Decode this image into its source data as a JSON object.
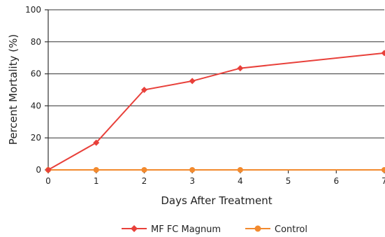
{
  "chart_data": {
    "type": "line",
    "xlabel": "Days After Treatment",
    "ylabel": "Percent Mortality (%)",
    "xlim": [
      0,
      7
    ],
    "ylim": [
      0,
      100
    ],
    "x_ticks": [
      0,
      1,
      2,
      3,
      4,
      5,
      6,
      7
    ],
    "y_ticks": [
      0,
      20,
      40,
      60,
      80,
      100
    ],
    "x_tick_labels": [
      "0",
      "1",
      "2",
      "3",
      "4",
      "5",
      "6",
      "7"
    ],
    "y_tick_labels": [
      "0",
      "20",
      "40",
      "60",
      "80",
      "100"
    ],
    "grid": "horizontal",
    "legend_position": "bottom",
    "series": [
      {
        "name": "MF FC Magnum",
        "color": "#e8403a",
        "marker": "diamond",
        "x": [
          0,
          1,
          2,
          3,
          4,
          7
        ],
        "y": [
          0,
          17,
          50,
          55.5,
          63.5,
          73
        ]
      },
      {
        "name": "Control",
        "color": "#f28a2e",
        "marker": "circle",
        "x": [
          0,
          1,
          2,
          3,
          4,
          7
        ],
        "y": [
          0,
          0,
          0,
          0,
          0,
          0
        ]
      }
    ]
  }
}
